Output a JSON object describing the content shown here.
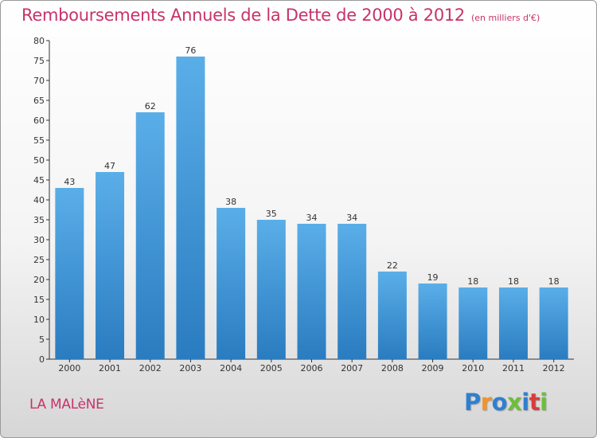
{
  "chart_data": {
    "type": "bar",
    "title": "Remboursements Annuels de la Dette de 2000 à 2012",
    "subtitle": "(en milliers d'€)",
    "categories": [
      "2000",
      "2001",
      "2002",
      "2003",
      "2004",
      "2005",
      "2006",
      "2007",
      "2008",
      "2009",
      "2010",
      "2011",
      "2012"
    ],
    "values": [
      43,
      47,
      62,
      76,
      38,
      35,
      34,
      34,
      22,
      19,
      18,
      18,
      18
    ],
    "ylim": [
      0,
      80
    ],
    "yticks": [
      0,
      5,
      10,
      15,
      20,
      25,
      30,
      35,
      40,
      45,
      50,
      55,
      60,
      65,
      70,
      75,
      80
    ],
    "xlabel": "",
    "ylabel": "",
    "grid": false,
    "bar_color": "#3f97dc",
    "bar_color_light": "#5aaee8",
    "bar_color_dark": "#2a7cc0"
  },
  "footer": {
    "town": "LA MALèNE",
    "logo_letters": [
      "P",
      "r",
      "o",
      "x",
      "i",
      "t",
      "i"
    ],
    "logo_colors": [
      "#2f7fd0",
      "#f0932b",
      "#2f7fd0",
      "#6cbf3a",
      "#2f7fd0",
      "#d93c3c",
      "#6cbf3a"
    ]
  },
  "colors": {
    "title": "#c8326a",
    "axis": "#333333"
  }
}
